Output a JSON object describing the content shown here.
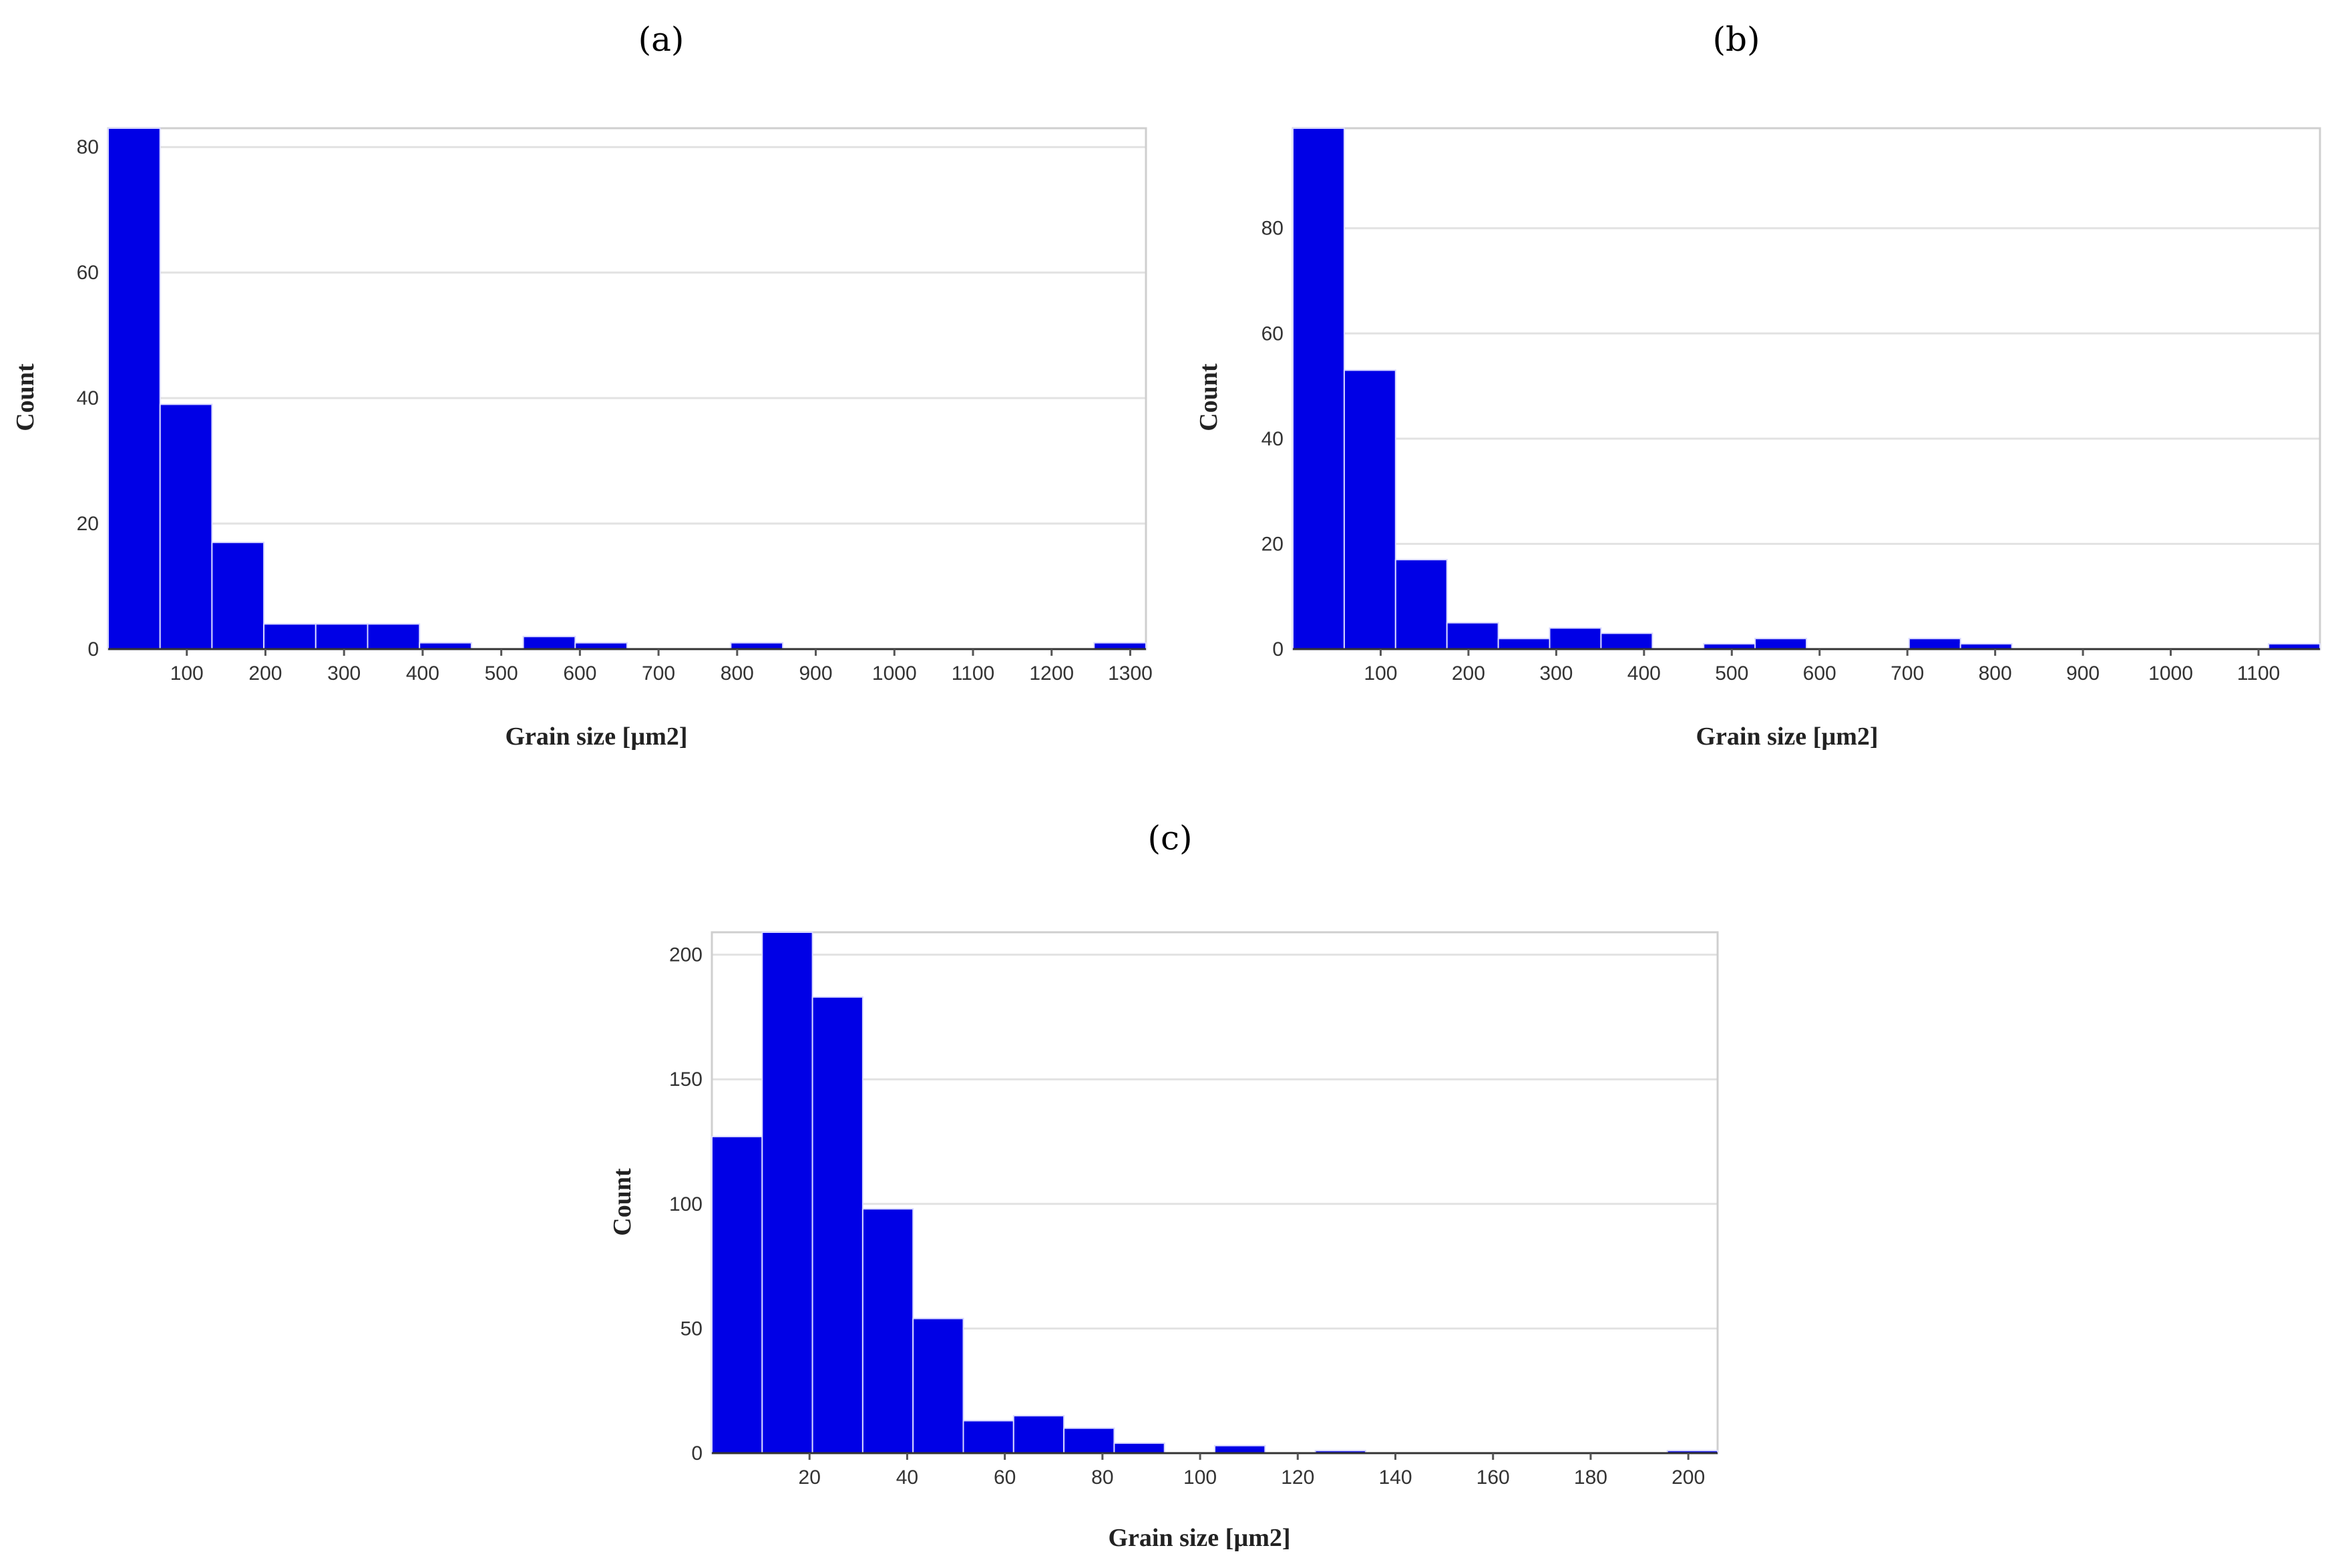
{
  "chart_data": [
    {
      "panel": "(a)",
      "type": "histogram",
      "xlabel": "Grain size [µm2]",
      "ylabel": "Count",
      "xlim": [
        0,
        1320
      ],
      "ylim": [
        0,
        83
      ],
      "xticks": [
        100,
        200,
        300,
        400,
        500,
        600,
        700,
        800,
        900,
        1000,
        1100,
        1200,
        1300
      ],
      "yticks": [
        0,
        20,
        40,
        60,
        80
      ],
      "bin_width": 66,
      "bin_starts": [
        0,
        66,
        132,
        198,
        264,
        330,
        396,
        528,
        594,
        792,
        1254
      ],
      "values": [
        83,
        39,
        17,
        4,
        4,
        4,
        1,
        2,
        1,
        1,
        1
      ]
    },
    {
      "panel": "(b)",
      "type": "histogram",
      "xlabel": "Grain size [µm2]",
      "ylabel": "Count",
      "xlim": [
        0,
        1170
      ],
      "ylim": [
        0,
        99
      ],
      "xticks": [
        100,
        200,
        300,
        400,
        500,
        600,
        700,
        800,
        900,
        1000,
        1100
      ],
      "yticks": [
        0,
        20,
        40,
        60,
        80
      ],
      "bin_width": 58.5,
      "bin_starts": [
        0,
        58.5,
        117,
        175.5,
        234,
        292.5,
        351,
        468,
        526.5,
        702,
        760.5,
        1111.5
      ],
      "values": [
        99,
        53,
        17,
        5,
        2,
        4,
        3,
        1,
        2,
        2,
        1,
        1
      ]
    },
    {
      "panel": "(c)",
      "type": "histogram",
      "xlabel": "Grain size [µm2]",
      "ylabel": "Count",
      "xlim": [
        0,
        206
      ],
      "ylim": [
        0,
        209
      ],
      "xticks": [
        20,
        40,
        60,
        80,
        100,
        120,
        140,
        160,
        180,
        200
      ],
      "yticks": [
        0,
        50,
        100,
        150,
        200
      ],
      "bin_width": 10.3,
      "bin_starts": [
        0,
        10.3,
        20.6,
        30.9,
        41.2,
        51.5,
        61.8,
        72.1,
        82.4,
        103,
        123.6,
        195.7
      ],
      "values": [
        127,
        209,
        183,
        98,
        54,
        13,
        15,
        10,
        4,
        3,
        1,
        1
      ]
    }
  ]
}
